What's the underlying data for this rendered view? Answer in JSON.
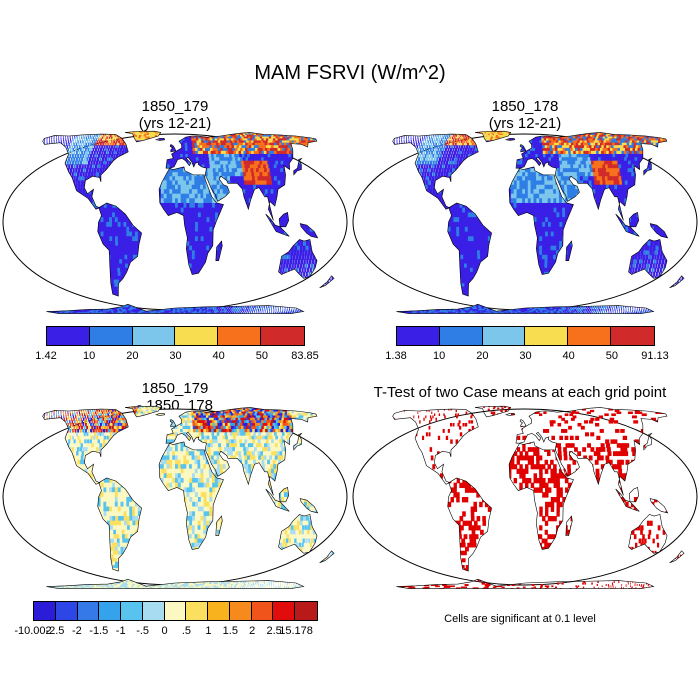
{
  "figure": {
    "title": "MAM FSRVI (W/m^2)",
    "panels": [
      {
        "id": "p1",
        "title_line1": "1850_179",
        "title_line2": "(yrs 12-21)"
      },
      {
        "id": "p2",
        "title_line1": "1850_178",
        "title_line2": "(yrs 12-21)"
      },
      {
        "id": "p3",
        "title_line1": "1850_179",
        "title_line2": "- 1850_178"
      },
      {
        "id": "p4",
        "title_line1": "T-Test of two Case means at each grid point",
        "title_line2": ""
      }
    ],
    "note": "Cells are significant at 0.1 level"
  },
  "colorbars": {
    "cb1": {
      "colors": [
        "#3a1fe6",
        "#2f7ee6",
        "#7cc6ec",
        "#f7dd4f",
        "#f7711d",
        "#d02a2a"
      ],
      "labels": [
        "1.42",
        "10",
        "20",
        "30",
        "40",
        "50",
        "83.85"
      ]
    },
    "cb2": {
      "colors": [
        "#3a1fe6",
        "#2f7ee6",
        "#7cc6ec",
        "#f7dd4f",
        "#f7711d",
        "#d02a2a"
      ],
      "labels": [
        "1.38",
        "10",
        "20",
        "30",
        "40",
        "50",
        "91.13"
      ]
    },
    "cb3": {
      "colors": [
        "#2b1cd8",
        "#2d47e6",
        "#3579e8",
        "#35a2ec",
        "#58c3ef",
        "#a8dcf1",
        "#fbf8c2",
        "#fbe060",
        "#f7b21d",
        "#f78a1d",
        "#f0541a",
        "#e10c0c",
        "#b81a1a"
      ],
      "labels": [
        "-10.002",
        "-2.5",
        "-2",
        "-1.5",
        "-1",
        "-.5",
        "0",
        ".5",
        "1",
        "1.5",
        "2",
        "2.5",
        "15.178"
      ]
    }
  },
  "map_colors": {
    "ocean": "#ffffff",
    "outline": "#000000",
    "signif": "#e00000"
  }
}
